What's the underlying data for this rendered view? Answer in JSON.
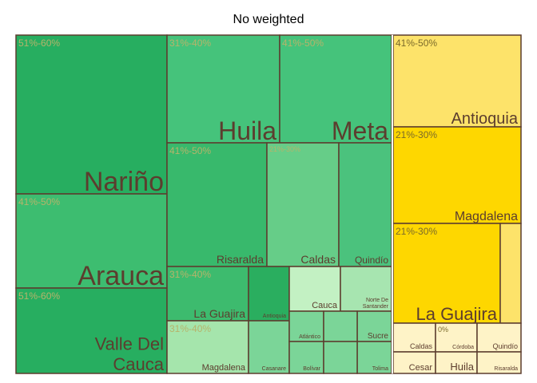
{
  "chart_data": {
    "type": "treemap",
    "title": "No weighted",
    "tiles": [
      {
        "name": "Nariño",
        "group": "51%-60%",
        "color": "#27ae60",
        "label_pos": "bottom-right",
        "size": 34
      },
      {
        "name": "Arauca",
        "group": "41%-50%",
        "color": "#3dbd70",
        "label_pos": "bottom-right",
        "size": 34
      },
      {
        "name": "Valle Del Cauca",
        "group": "51%-60%",
        "color": "#27ae60",
        "label_pos": "bottom-right",
        "size": 22
      },
      {
        "name": "Huila",
        "group": "31%-40%",
        "color": "#45c37b",
        "label_pos": "bottom-right",
        "size": 32
      },
      {
        "name": "Meta",
        "group": "41%-50%",
        "color": "#45c37b",
        "label_pos": "bottom-right",
        "size": 32
      },
      {
        "name": "Risaralda",
        "group": "41%-50%",
        "color": "#38b96c",
        "label_pos": "bottom-right",
        "size": 14
      },
      {
        "name": "Caldas",
        "group": "21%-30%",
        "color": "#66cd88",
        "label_pos": "bottom-right",
        "size": 14
      },
      {
        "name": "Quindío",
        "group": "",
        "color": "#4bc27d",
        "label_pos": "bottom-right",
        "size": 12
      },
      {
        "name": "La Guajira",
        "group": "31%-40%",
        "color": "#3dbb6e",
        "label_pos": "bottom-right",
        "size": 14
      },
      {
        "name": "Antioquia",
        "group": "",
        "color": "#2aae5f",
        "label_pos": "bottom-right",
        "size": 7
      },
      {
        "name": "Cauca",
        "group": "",
        "color": "#c3f1c3",
        "label_pos": "bottom-right",
        "size": 11
      },
      {
        "name": "Norte De Santander",
        "group": "",
        "color": "#a7e5b0",
        "label_pos": "bottom-right",
        "size": 7
      },
      {
        "name": "Magdalena",
        "group": "31%-40%",
        "color": "#a5e5ac",
        "label_pos": "bottom-right",
        "size": 11
      },
      {
        "name": "Casanare",
        "group": "",
        "color": "#7bd598",
        "label_pos": "bottom-right",
        "size": 7
      },
      {
        "name": "Atlántico",
        "group": "",
        "color": "#7bd598",
        "label_pos": "bottom-right",
        "size": 7
      },
      {
        "name": "Sucre",
        "group": "",
        "color": "#7bd598",
        "label_pos": "bottom-right",
        "size": 10
      },
      {
        "name": "Bolívar",
        "group": "",
        "color": "#7bd598",
        "label_pos": "bottom-right",
        "size": 7
      },
      {
        "name": "Tolima",
        "group": "",
        "color": "#7bd598",
        "label_pos": "bottom-right",
        "size": 7
      },
      {
        "name": "",
        "group": "",
        "color": "#7bd598",
        "label_pos": "bottom-right",
        "size": 7
      },
      {
        "name": "",
        "group": "",
        "color": "#7bd598",
        "label_pos": "bottom-right",
        "size": 7
      },
      {
        "name": "",
        "group": "",
        "color": "#7bd598",
        "label_pos": "bottom-right",
        "size": 7
      },
      {
        "name": "Antioquia",
        "group": "41%-50%",
        "color": "#fde36a",
        "label_pos": "bottom-right",
        "size": 20
      },
      {
        "name": "Magdalena",
        "group": "21%-30%",
        "color": "#fed700",
        "label_pos": "bottom-right",
        "size": 16
      },
      {
        "name": "La Guajira",
        "group": "21%-30%",
        "color": "#fed700",
        "label_pos": "bottom-right",
        "size": 22
      },
      {
        "name": "",
        "group": "",
        "color": "#fde36a",
        "label_pos": "bottom-right",
        "size": 7
      },
      {
        "name": "Caldas",
        "group": "",
        "color": "#fef3c7",
        "label_pos": "bottom-right",
        "size": 9
      },
      {
        "name": "Córdoba",
        "group": "0%",
        "color": "#fef3c7",
        "label_pos": "bottom-right",
        "size": 7
      },
      {
        "name": "Quindío",
        "group": "",
        "color": "#fef3c7",
        "label_pos": "bottom-right",
        "size": 9
      },
      {
        "name": "Cesar",
        "group": "",
        "color": "#fef3c7",
        "label_pos": "bottom-right",
        "size": 11
      },
      {
        "name": "Huila",
        "group": "",
        "color": "#fef3c7",
        "label_pos": "bottom-right",
        "size": 13
      },
      {
        "name": "Risaralda",
        "group": "",
        "color": "#fef3c7",
        "label_pos": "bottom-right",
        "size": 7
      }
    ],
    "style": {
      "border_color": "#5c3d2e",
      "label_color": "#5c3d2e",
      "group_label_color_green": "#b7b36a",
      "group_label_color_yellow": "#7a6a2a"
    }
  }
}
